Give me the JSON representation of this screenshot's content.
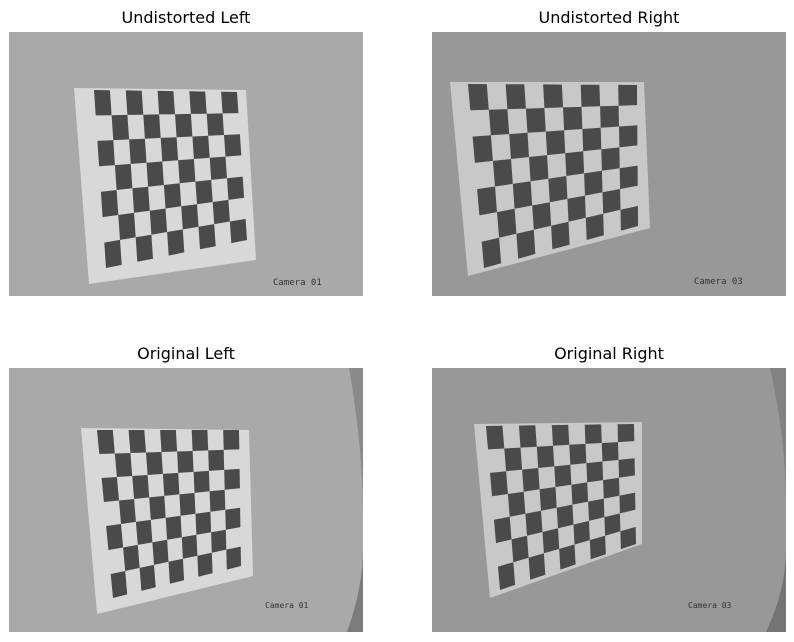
{
  "panels": {
    "undistorted_left": {
      "title": "Undistorted Left",
      "label": "Camera 01"
    },
    "undistorted_right": {
      "title": "Undistorted Right",
      "label": "Camera 03"
    },
    "original_left": {
      "title": "Original Left",
      "label": "Camera 01"
    },
    "original_right": {
      "title": "Original Right",
      "label": "Camera 03"
    }
  },
  "colors": {
    "wall_left": "#a9a9a9",
    "wall_right": "#989898",
    "paper": "#d8d8d8",
    "square": "#4a4a4a"
  }
}
